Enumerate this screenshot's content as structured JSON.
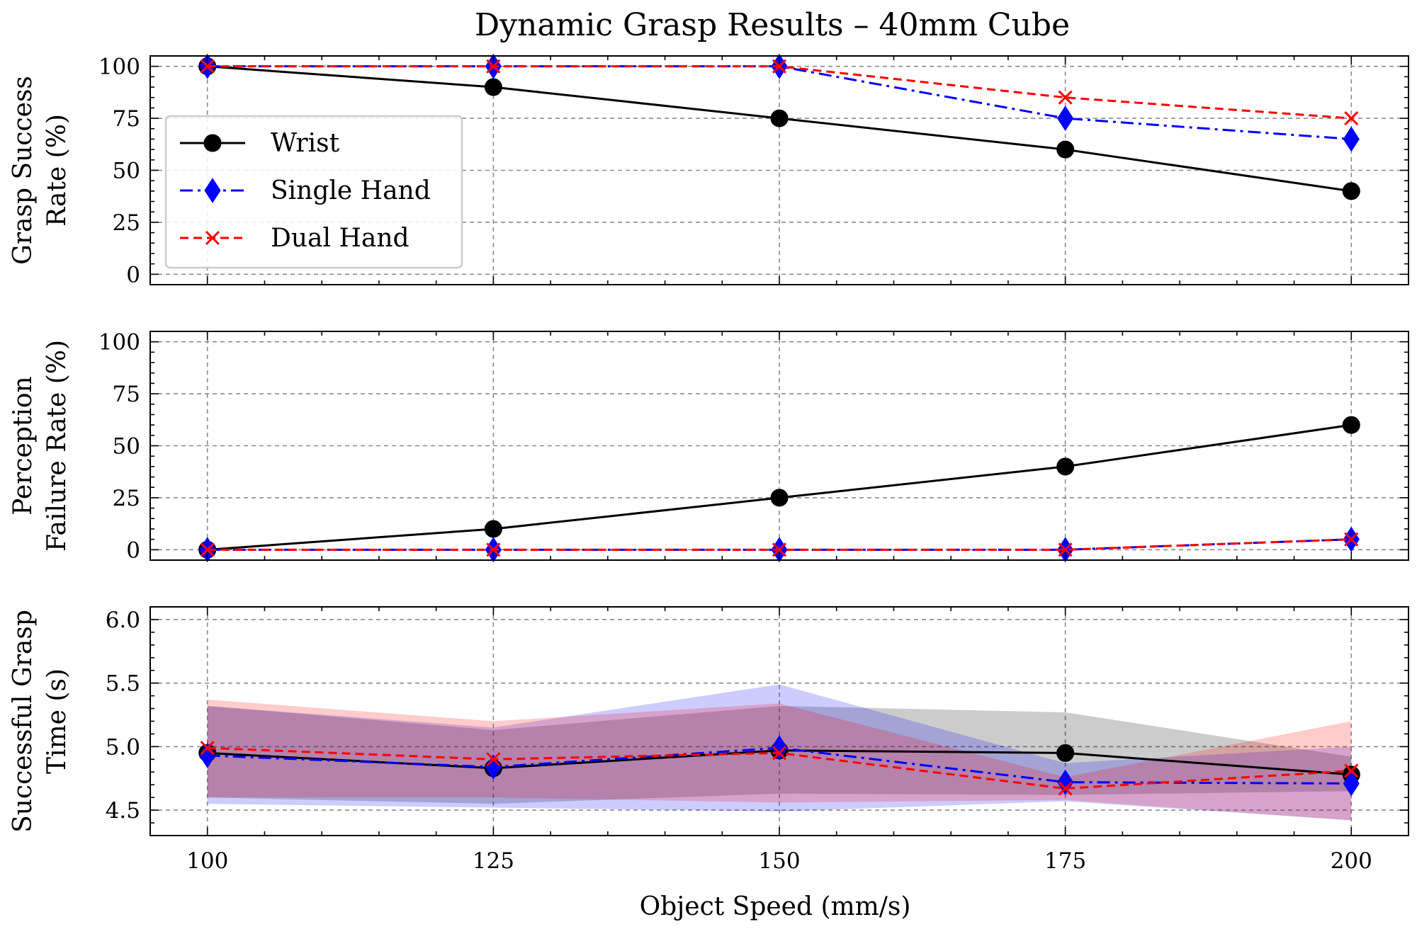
{
  "figure": {
    "title": "Dynamic Grasp Results – 40mm Cube",
    "xlabel": "Object Speed (mm/s)"
  },
  "legend": {
    "placement": "center-left",
    "entries": [
      "Wrist",
      "Single Hand",
      "Dual Hand"
    ]
  },
  "colors": {
    "wrist": "#000000",
    "single_hand": "#0000ff",
    "dual_hand": "#ff0000",
    "grid": "#8a8a8a"
  },
  "chart_data": [
    {
      "type": "line",
      "ylabel": [
        "Grasp Success",
        "Rate (%)"
      ],
      "x": [
        100,
        125,
        150,
        175,
        200
      ],
      "xlim": [
        95,
        205
      ],
      "ylim": [
        -5,
        105
      ],
      "yticks": [
        0,
        25,
        50,
        75,
        100
      ],
      "grid": true,
      "series": [
        {
          "name": "Wrist",
          "marker": "circle",
          "values": [
            100,
            90,
            75,
            60,
            40
          ]
        },
        {
          "name": "Single Hand",
          "marker": "diamond",
          "values": [
            100,
            100,
            100,
            75,
            65
          ]
        },
        {
          "name": "Dual Hand",
          "marker": "x",
          "values": [
            100,
            100,
            100,
            85,
            75
          ]
        }
      ]
    },
    {
      "type": "line",
      "ylabel": [
        "Perception",
        "Failure Rate (%)"
      ],
      "x": [
        100,
        125,
        150,
        175,
        200
      ],
      "xlim": [
        95,
        205
      ],
      "ylim": [
        -5,
        105
      ],
      "yticks": [
        0,
        25,
        50,
        75,
        100
      ],
      "grid": true,
      "series": [
        {
          "name": "Wrist",
          "marker": "circle",
          "values": [
            0,
            10,
            25,
            40,
            60
          ]
        },
        {
          "name": "Single Hand",
          "marker": "diamond",
          "values": [
            0,
            0,
            0,
            0,
            5
          ]
        },
        {
          "name": "Dual Hand",
          "marker": "x",
          "values": [
            0,
            0,
            0,
            0,
            5
          ]
        }
      ]
    },
    {
      "type": "line",
      "ylabel": [
        "Successful Grasp",
        "Time (s)"
      ],
      "x": [
        100,
        125,
        150,
        175,
        200
      ],
      "xlim": [
        95,
        205
      ],
      "ylim": [
        4.3,
        6.1
      ],
      "yticks": [
        4.5,
        5.0,
        5.5,
        6.0
      ],
      "xticks": [
        100,
        125,
        150,
        175,
        200
      ],
      "grid": true,
      "series": [
        {
          "name": "Wrist",
          "marker": "circle",
          "values": [
            4.95,
            4.83,
            4.97,
            4.95,
            4.78
          ],
          "band_low": [
            4.6,
            4.55,
            4.63,
            4.62,
            4.65
          ],
          "band_high": [
            5.32,
            5.13,
            5.32,
            5.27,
            4.92
          ]
        },
        {
          "name": "Single Hand",
          "marker": "diamond",
          "values": [
            4.93,
            4.84,
            4.99,
            4.72,
            4.71
          ],
          "band_low": [
            4.55,
            4.52,
            4.49,
            4.57,
            4.42
          ],
          "band_high": [
            5.32,
            5.15,
            5.49,
            4.87,
            5.0
          ]
        },
        {
          "name": "Dual Hand",
          "marker": "x",
          "values": [
            4.99,
            4.9,
            4.95,
            4.67,
            4.81
          ],
          "band_low": [
            4.6,
            4.6,
            4.56,
            4.58,
            4.42
          ],
          "band_high": [
            5.37,
            5.2,
            5.34,
            4.76,
            5.2
          ]
        }
      ]
    }
  ]
}
